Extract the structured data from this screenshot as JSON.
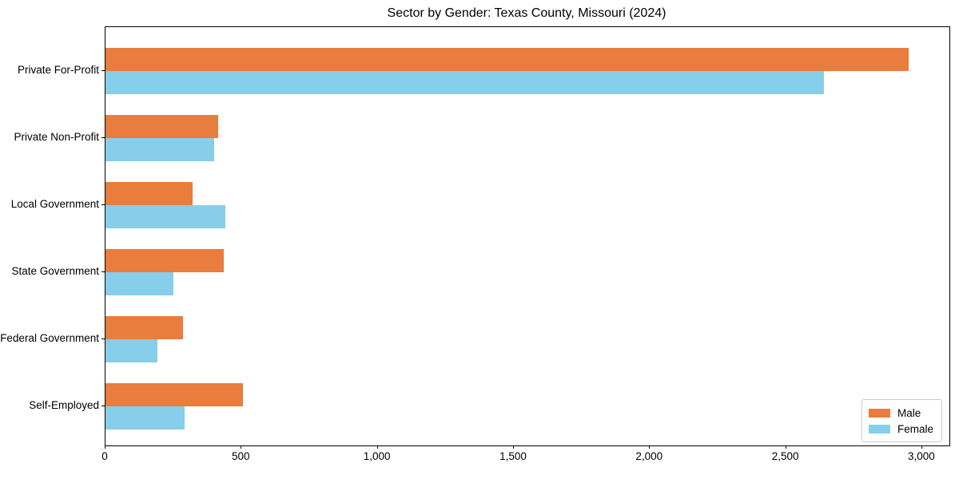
{
  "chart_data": {
    "type": "bar",
    "orientation": "horizontal",
    "title": "Sector by Gender: Texas County, Missouri (2024)",
    "categories": [
      "Private For-Profit",
      "Private Non-Profit",
      "Local Government",
      "State Government",
      "Federal Government",
      "Self-Employed"
    ],
    "series": [
      {
        "name": "Male",
        "color": "#e87d3e",
        "values": [
          2950,
          415,
          320,
          435,
          285,
          505
        ]
      },
      {
        "name": "Female",
        "color": "#87ceeb",
        "values": [
          2640,
          400,
          440,
          250,
          190,
          290
        ]
      }
    ],
    "xlabel": "",
    "ylabel": "",
    "xlim": [
      0,
      3100
    ],
    "xticks": [
      0,
      500,
      1000,
      1500,
      2000,
      2500,
      3000
    ],
    "xtick_labels": [
      "0",
      "500",
      "1,000",
      "1,500",
      "2,000",
      "2,500",
      "3,000"
    ],
    "legend_position": "lower right",
    "grid": false,
    "background_color": "#ffffff",
    "spine_color": "#000000"
  }
}
